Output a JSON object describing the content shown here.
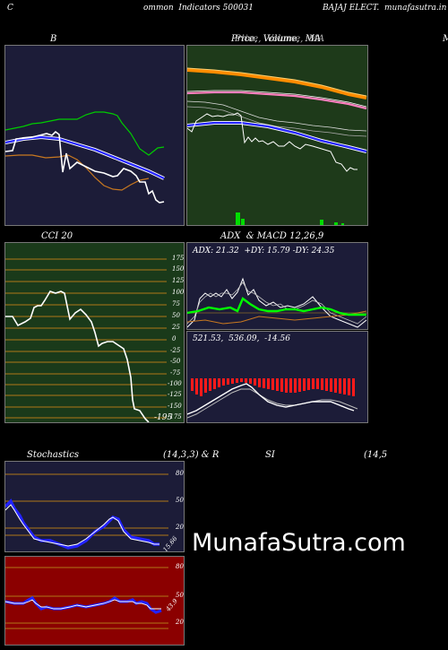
{
  "header": {
    "left": "C",
    "center": "ommon  Indicators 500031",
    "right": "BAJAJ ELECT.  munafasutra.in"
  },
  "panels": {
    "bollinger": {
      "title": "B"
    },
    "price": {
      "title": "Price,  Volume,  MA",
      "title_overlay": "Price,  Volume,  MA"
    },
    "right_edge_title": "M",
    "cci": {
      "title": "CCI 20",
      "levels": [
        "175",
        "150",
        "125",
        "100",
        "75",
        "50",
        "25",
        "0",
        "-25",
        "-50",
        "-75",
        "-100",
        "-125",
        "-150",
        "-175"
      ],
      "current": "-195"
    },
    "adx": {
      "title": "ADX  & MACD 12,26,9",
      "reading": "ADX: 21.32  +DY: 15.79 -DY: 24.35"
    },
    "macd": {
      "reading": "521.53,  536.09,  -14.56"
    },
    "stoch": {
      "title_left": "Stochastics",
      "title_mid": "(14,3,3) & R",
      "title_si": "SI",
      "title_right": "(14,5",
      "levels": [
        "80",
        "50",
        "20"
      ],
      "current": "15.66"
    },
    "rsi": {
      "levels": [
        "80",
        "50",
        "20"
      ],
      "current": "43.9"
    }
  },
  "brand": "MunafaSutra.com",
  "colors": {
    "navy": "#1c1c38",
    "green_bg": "#1e3a1a",
    "cci_bg": "#1a3a1a",
    "rsi_bg": "#8b0000",
    "grid_orange": "#b07818",
    "price_orange": "#ff8c00",
    "signal_blue": "#2222ff",
    "adx_green": "#00ff00"
  }
}
